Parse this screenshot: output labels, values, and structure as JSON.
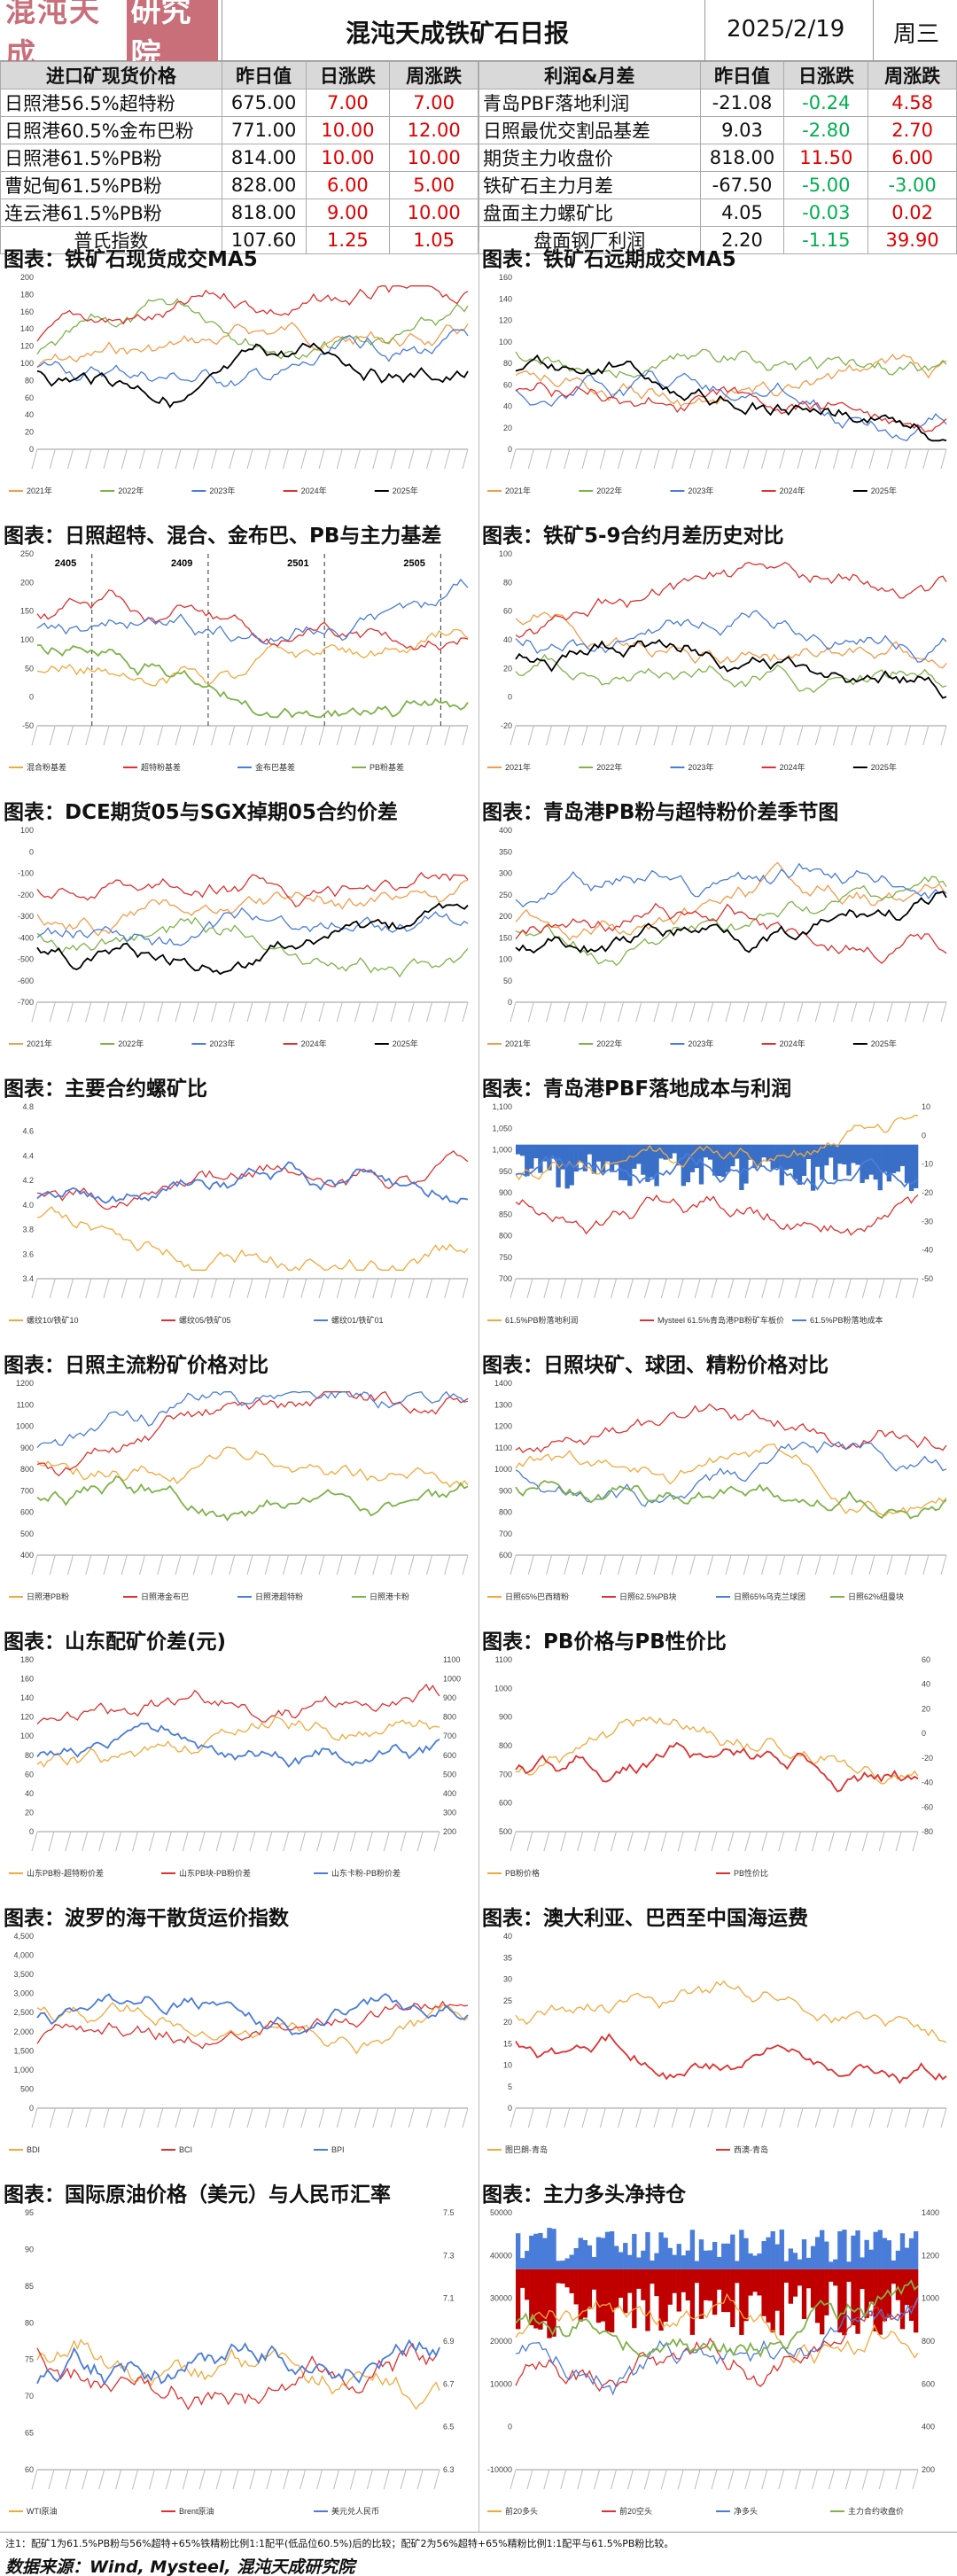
{
  "header": {
    "logo_text": "混沌天成",
    "logo_box": "研究院",
    "title": "混沌天成铁矿石日报",
    "date": "2025/2/19",
    "weekday": "周三"
  },
  "table_left": {
    "headers": [
      "进口矿现货价格",
      "昨日值",
      "日涨跌",
      "周涨跌"
    ],
    "rows": [
      [
        "日照港56.5%超特粉",
        "675.00",
        "7.00",
        "7.00"
      ],
      [
        "日照港60.5%金布巴粉",
        "771.00",
        "10.00",
        "12.00"
      ],
      [
        "日照港61.5%PB粉",
        "814.00",
        "10.00",
        "10.00"
      ],
      [
        "曹妃甸61.5%PB粉",
        "828.00",
        "6.00",
        "5.00"
      ],
      [
        "连云港61.5%PB粉",
        "818.00",
        "9.00",
        "10.00"
      ],
      [
        "普氏指数",
        "107.60",
        "1.25",
        "1.05"
      ]
    ]
  },
  "table_right": {
    "headers": [
      "利润&月差",
      "昨日值",
      "日涨跌",
      "周涨跌"
    ],
    "rows": [
      [
        "青岛PBF落地利润",
        "-21.08",
        "-0.24",
        "4.58"
      ],
      [
        "日照最优交割品基差",
        "9.03",
        "-2.80",
        "2.70"
      ],
      [
        "期货主力收盘价",
        "818.00",
        "11.50",
        "6.00"
      ],
      [
        "铁矿石主力月差",
        "-67.50",
        "-5.00",
        "-3.00"
      ],
      [
        "盘面主力螺矿比",
        "4.05",
        "-0.03",
        "0.02"
      ],
      [
        "盘面钢厂利润",
        "2.20",
        "-1.15",
        "39.90"
      ]
    ]
  },
  "colors": {
    "red": "#e00000",
    "green": "#00b050"
  },
  "sections": [
    {
      "title": "图表：铁矿石现货成交MA5",
      "yticks": [
        "200",
        "180",
        "160",
        "140",
        "120",
        "100",
        "80",
        "60",
        "40",
        "20",
        "0"
      ],
      "legend": [
        "2021年",
        "2022年",
        "2023年",
        "2024年",
        "2025年"
      ]
    },
    {
      "title": "图表：铁矿石远期成交MA5",
      "yticks": [
        "160",
        "140",
        "120",
        "100",
        "80",
        "60",
        "40",
        "20",
        "0"
      ],
      "legend": [
        "2021年",
        "2022年",
        "2023年",
        "2024年",
        "2025年"
      ]
    },
    {
      "title": "图表：日照超特、混合、金布巴、PB与主力基差",
      "yticks": [
        "250",
        "200",
        "150",
        "100",
        "50",
        "0",
        "-50"
      ],
      "legend": [
        "混合粉基差",
        "超特粉基差",
        "金布巴基差",
        "PB粉基差"
      ],
      "annotations": [
        "2405",
        "2409",
        "2501",
        "2505"
      ]
    },
    {
      "title": "图表：铁矿5-9合约月差历史对比",
      "yticks": [
        "100",
        "80",
        "60",
        "40",
        "20",
        "0",
        "-20"
      ],
      "legend": [
        "2021年",
        "2022年",
        "2023年",
        "2024年",
        "2025年"
      ]
    },
    {
      "title": "图表：DCE期货05与SGX掉期05合约价差",
      "yticks": [
        "100",
        "0",
        "-100",
        "-200",
        "-300",
        "-400",
        "-500",
        "-600",
        "-700"
      ],
      "legend": [
        "2021年",
        "2022年",
        "2023年",
        "2024年",
        "2025年"
      ]
    },
    {
      "title": "图表：青岛港PB粉与超特粉价差季节图",
      "yticks": [
        "400",
        "350",
        "300",
        "250",
        "200",
        "150",
        "100",
        "50",
        "0"
      ],
      "legend": [
        "2021年",
        "2022年",
        "2023年",
        "2024年",
        "2025年"
      ]
    },
    {
      "title": "图表：主要合约螺矿比",
      "yticks": [
        "4.8",
        "4.6",
        "4.4",
        "4.2",
        "4.0",
        "3.8",
        "3.6",
        "3.4"
      ],
      "legend": [
        "螺纹10/铁矿10",
        "螺纹05/铁矿05",
        "螺纹01/铁矿01"
      ]
    },
    {
      "title": "图表：青岛港PBF落地成本与利润",
      "yticks": [
        "1,100",
        "1,050",
        "1,000",
        "950",
        "900",
        "850",
        "800",
        "750",
        "700"
      ],
      "yticks_right": [
        "10",
        "0",
        "-10",
        "-20",
        "-30",
        "-40",
        "-50"
      ],
      "legend": [
        "61.5%PB粉落地利润",
        "Mysteel 61.5%青岛港PB粉矿车板价",
        "61.5%PB粉落地成本"
      ]
    },
    {
      "title": "图表：日照主流粉矿价格对比",
      "yticks": [
        "1200",
        "1100",
        "1000",
        "900",
        "800",
        "700",
        "600",
        "500",
        "400"
      ],
      "legend": [
        "日照港PB粉",
        "日照港金布巴",
        "日照港超特粉",
        "日照港卡粉"
      ]
    },
    {
      "title": "图表：日照块矿、球团、精粉价格对比",
      "yticks": [
        "1400",
        "1300",
        "1200",
        "1100",
        "1000",
        "900",
        "800",
        "700",
        "600"
      ],
      "legend": [
        "日照65%巴西精粉",
        "日照62.5%PB块",
        "日照65%乌克兰球团",
        "日照62%纽曼块"
      ]
    },
    {
      "title": "图表：山东配矿价差(元)",
      "yticks": [
        "180",
        "160",
        "140",
        "120",
        "100",
        "80",
        "60",
        "40",
        "20",
        "0"
      ],
      "yticks_right": [
        "1100",
        "1000",
        "900",
        "800",
        "700",
        "600",
        "500",
        "400",
        "300",
        "200"
      ],
      "legend": [
        "山东PB粉-超特粉价差",
        "山东PB块-PB粉价差",
        "山东卡粉-PB粉价差"
      ]
    },
    {
      "title": "图表：PB价格与PB性价比",
      "yticks": [
        "1100",
        "1000",
        "900",
        "800",
        "700",
        "600",
        "500"
      ],
      "yticks_right": [
        "60",
        "40",
        "20",
        "0",
        "-20",
        "-40",
        "-60",
        "-80"
      ],
      "legend": [
        "PB粉价格",
        "PB性价比"
      ]
    },
    {
      "title": "图表：波罗的海干散货运价指数",
      "yticks": [
        "4,500",
        "4,000",
        "3,500",
        "3,000",
        "2,500",
        "2,000",
        "1,500",
        "1,000",
        "500",
        "0"
      ],
      "legend": [
        "BDI",
        "BCI",
        "BPI"
      ]
    },
    {
      "title": "图表：澳大利亚、巴西至中国海运费",
      "yticks": [
        "40",
        "35",
        "30",
        "25",
        "20",
        "15",
        "10",
        "5",
        "0"
      ],
      "legend": [
        "图巴朗-青岛",
        "西澳-青岛"
      ]
    },
    {
      "title": "图表：国际原油价格（美元）与人民币汇率",
      "yticks": [
        "95",
        "90",
        "85",
        "80",
        "75",
        "70",
        "65",
        "60"
      ],
      "yticks_right": [
        "7.5",
        "7.3",
        "7.1",
        "6.9",
        "6.7",
        "6.5",
        "6.3"
      ],
      "legend": [
        "WTI原油",
        "Brent原油",
        "美元兑人民币"
      ]
    },
    {
      "title": "图表：主力多头净持仓",
      "yticks": [
        "50000",
        "40000",
        "30000",
        "20000",
        "10000",
        "0",
        "-10000"
      ],
      "yticks_right": [
        "1400",
        "1200",
        "1000",
        "800",
        "600",
        "400",
        "200"
      ],
      "legend": [
        "前20多头",
        "前20空头",
        "净多头",
        "主力合约收盘价"
      ]
    }
  ],
  "footer": {
    "note": "注1：配矿1为61.5%PB粉与56%超特+65%铁精粉比例1:1配平(低品位60.5%)后的比较；配矿2为56%超特+65%精粉比例1:1配平与61.5%PB粉比较。",
    "source": "数据来源：Wind, Mysteel, 混沌天成研究院"
  }
}
